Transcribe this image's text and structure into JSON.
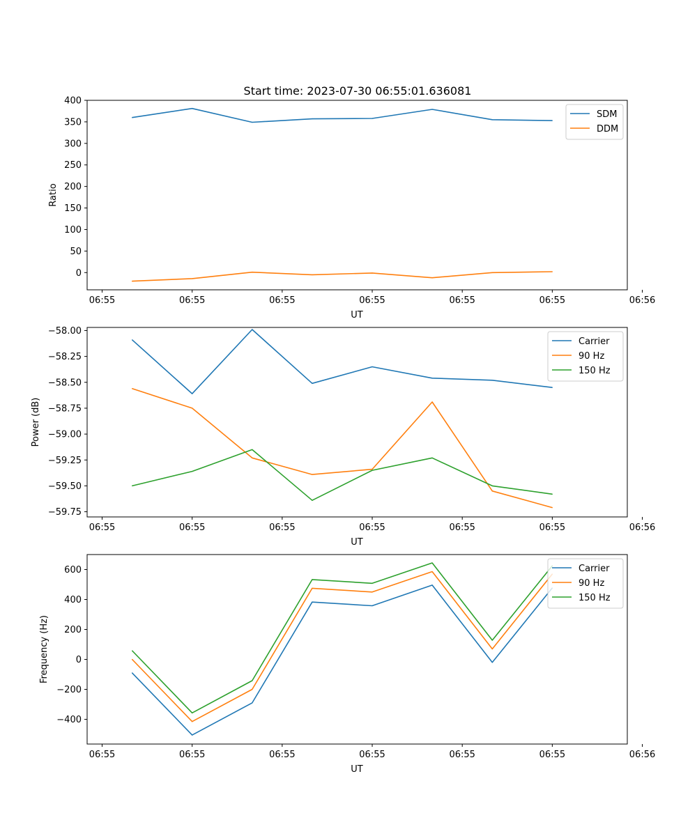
{
  "figure_title": "Start time: 2023-07-30 06:55:01.636081",
  "colors": {
    "blue": "#1f77b4",
    "orange": "#ff7f0e",
    "green": "#2ca02c"
  },
  "chart_data": [
    {
      "type": "line",
      "title": "Start time: 2023-07-30 06:55:01.636081",
      "xlabel": "UT",
      "ylabel": "Ratio",
      "x": [
        0,
        1,
        2,
        3,
        4,
        5,
        6,
        7
      ],
      "xlim": [
        -0.75,
        8.25
      ],
      "xticks": [
        -0.5,
        1,
        2.5,
        4,
        5.5,
        7,
        8.5
      ],
      "xtick_labels": [
        "06:55",
        "06:55",
        "06:55",
        "06:55",
        "06:55",
        "06:55",
        "06:56"
      ],
      "ylim": [
        -40,
        400
      ],
      "yticks": [
        0,
        50,
        100,
        150,
        200,
        250,
        300,
        350,
        400
      ],
      "ytick_labels": [
        "0",
        "50",
        "100",
        "150",
        "200",
        "250",
        "300",
        "350",
        "400"
      ],
      "legend_position": "top-right",
      "series": [
        {
          "name": "SDM",
          "color": "#1f77b4",
          "values": [
            360,
            381,
            349,
            357,
            358,
            379,
            355,
            353
          ]
        },
        {
          "name": "DDM",
          "color": "#ff7f0e",
          "values": [
            -20,
            -14,
            1,
            -5,
            -1,
            -12,
            0,
            2
          ]
        }
      ]
    },
    {
      "type": "line",
      "title": "",
      "xlabel": "UT",
      "ylabel": "Power (dB)",
      "x": [
        0,
        1,
        2,
        3,
        4,
        5,
        6,
        7
      ],
      "xlim": [
        -0.75,
        8.25
      ],
      "xticks": [
        -0.5,
        1,
        2.5,
        4,
        5.5,
        7,
        8.5
      ],
      "xtick_labels": [
        "06:55",
        "06:55",
        "06:55",
        "06:55",
        "06:55",
        "06:55",
        "06:56"
      ],
      "ylim": [
        -59.8,
        -57.97
      ],
      "yticks": [
        -59.75,
        -59.5,
        -59.25,
        -59.0,
        -58.75,
        -58.5,
        -58.25,
        -58.0
      ],
      "ytick_labels": [
        "−59.75",
        "−59.50",
        "−59.25",
        "−59.00",
        "−58.75",
        "−58.50",
        "−58.25",
        "−58.00"
      ],
      "legend_position": "top-right",
      "series": [
        {
          "name": "Carrier",
          "color": "#1f77b4",
          "values": [
            -58.09,
            -58.61,
            -57.99,
            -58.51,
            -58.35,
            -58.46,
            -58.48,
            -58.55
          ]
        },
        {
          "name": "90 Hz",
          "color": "#ff7f0e",
          "values": [
            -58.56,
            -58.75,
            -59.23,
            -59.39,
            -59.34,
            -58.69,
            -59.55,
            -59.71
          ]
        },
        {
          "name": "150 Hz",
          "color": "#2ca02c",
          "values": [
            -59.5,
            -59.36,
            -59.15,
            -59.64,
            -59.35,
            -59.23,
            -59.5,
            -59.58
          ]
        }
      ]
    },
    {
      "type": "line",
      "title": "",
      "xlabel": "UT",
      "ylabel": "Frequency (Hz)",
      "x": [
        0,
        1,
        2,
        3,
        4,
        5,
        6,
        7
      ],
      "xlim": [
        -0.75,
        8.25
      ],
      "xticks": [
        -0.5,
        1,
        2.5,
        4,
        5.5,
        7,
        8.5
      ],
      "xtick_labels": [
        "06:55",
        "06:55",
        "06:55",
        "06:55",
        "06:55",
        "06:55",
        "06:56"
      ],
      "ylim": [
        -565,
        700
      ],
      "yticks": [
        -400,
        -200,
        0,
        200,
        400,
        600
      ],
      "ytick_labels": [
        "−400",
        "−200",
        "0",
        "200",
        "400",
        "600"
      ],
      "legend_position": "top-right",
      "series": [
        {
          "name": "Carrier",
          "color": "#1f77b4",
          "values": [
            -90,
            -505,
            -290,
            383,
            358,
            496,
            -20,
            477
          ]
        },
        {
          "name": "90 Hz",
          "color": "#ff7f0e",
          "values": [
            0,
            -415,
            -200,
            475,
            450,
            586,
            70,
            570
          ]
        },
        {
          "name": "150 Hz",
          "color": "#2ca02c",
          "values": [
            58,
            -357,
            -142,
            533,
            508,
            644,
            128,
            625
          ]
        }
      ]
    }
  ]
}
